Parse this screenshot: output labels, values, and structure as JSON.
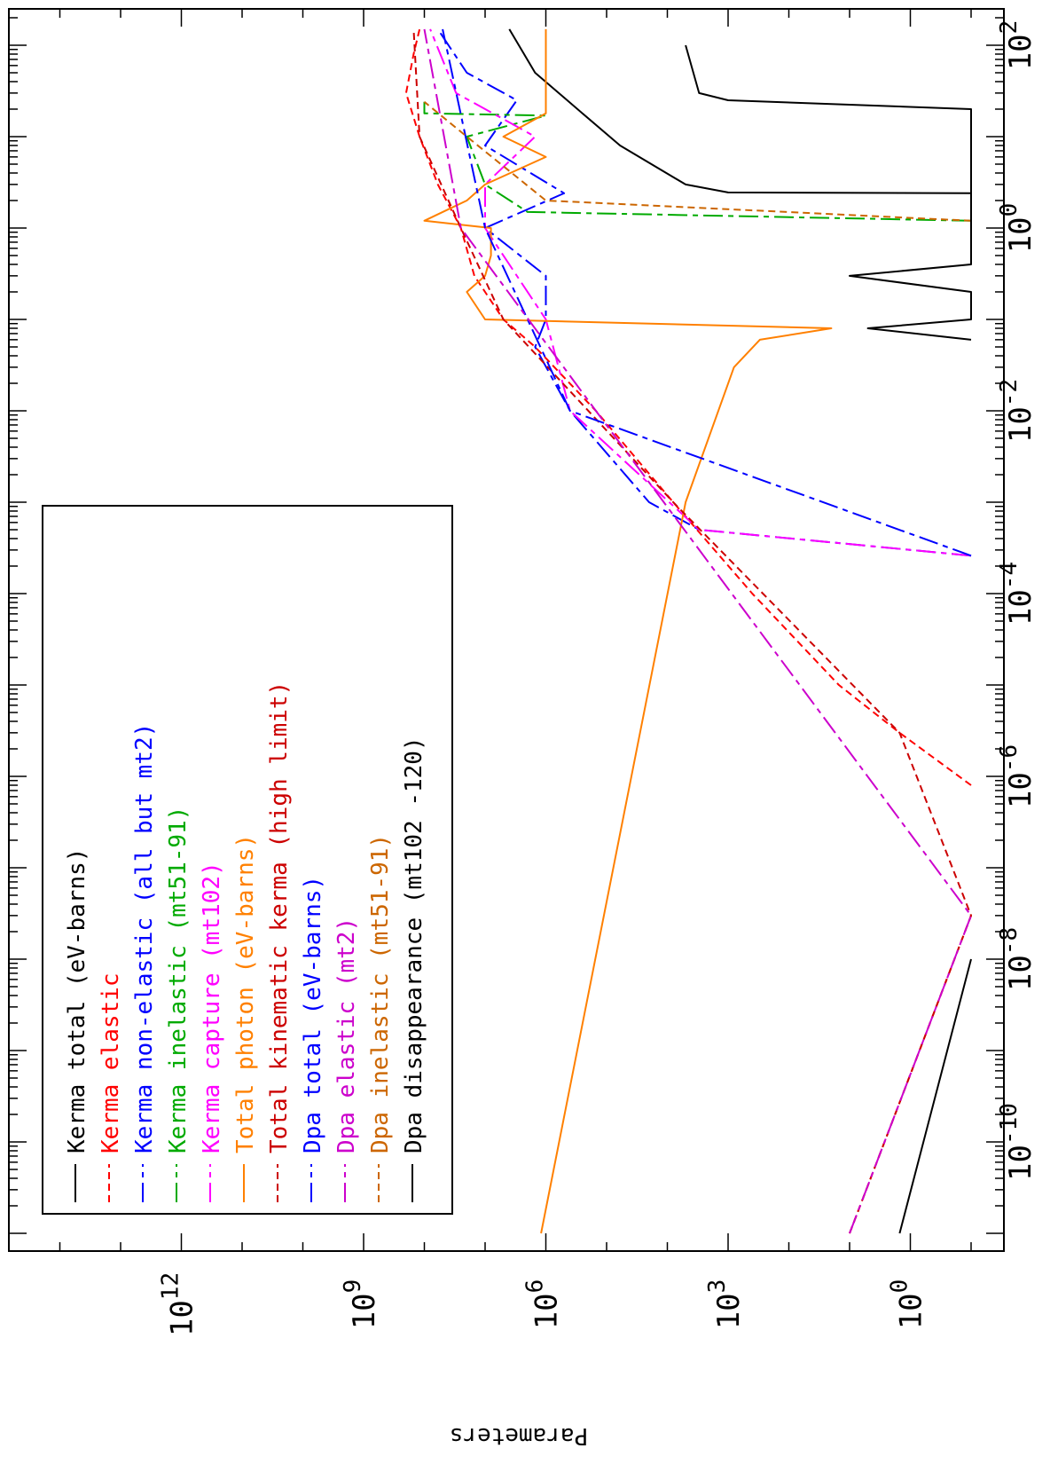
{
  "chart_data": {
    "type": "line",
    "orientation": "rotated 90 degrees clockwise on the page",
    "x_axis": {
      "label": "",
      "scale": "log",
      "range": [
        1e-11,
        200
      ],
      "tick_labels": [
        {
          "base": "10",
          "exp": "-10",
          "value": 1e-10
        },
        {
          "base": "10",
          "exp": "-8",
          "value": 1e-08
        },
        {
          "base": "10",
          "exp": "-6",
          "value": 1e-06
        },
        {
          "base": "10",
          "exp": "-4",
          "value": 0.0001
        },
        {
          "base": "10",
          "exp": "-2",
          "value": 0.01
        },
        {
          "base": "10",
          "exp": "0",
          "value": 1
        },
        {
          "base": "10",
          "exp": "2",
          "value": 100
        }
      ]
    },
    "y_axis": {
      "label": "Parameters",
      "scale": "log",
      "range": [
        0.1,
        100000000000000.0
      ],
      "tick_labels": [
        {
          "base": "10",
          "exp": "0",
          "value": 1
        },
        {
          "base": "10",
          "exp": "3",
          "value": 1000.0
        },
        {
          "base": "10",
          "exp": "6",
          "value": 1000000.0
        },
        {
          "base": "10",
          "exp": "9",
          "value": 1000000000.0
        },
        {
          "base": "10",
          "exp": "12",
          "value": 1000000000000.0
        }
      ]
    },
    "legend_position": "upper-left of the rotated plot",
    "series": [
      {
        "name": "Kerma total  (eV-barns)",
        "color": "#000000",
        "dash": "solid",
        "points": [
          [
            1e-11,
            1.5
          ],
          [
            1e-08,
            0.1
          ]
        ],
        "tail": [
          [
            2.4,
            0.1
          ],
          [
            2.45,
            1000
          ],
          [
            3,
            5000
          ],
          [
            8,
            60000
          ],
          [
            18,
            250000
          ],
          [
            50,
            1500000
          ],
          [
            150,
            4000000
          ]
        ]
      },
      {
        "name": "Kerma elastic",
        "color": "#ff0000",
        "dash": "short",
        "points": [
          [
            1e-11,
            10
          ],
          [
            3e-08,
            0.1
          ]
        ],
        "tail": [
          [
            8e-07,
            0.1
          ],
          [
            3e-06,
            1.5
          ],
          [
            1e-05,
            15
          ],
          [
            0.0001,
            400
          ],
          [
            0.001,
            8000
          ],
          [
            0.01,
            150000.0
          ],
          [
            0.05,
            1500000.0
          ],
          [
            0.1,
            5000000.0
          ],
          [
            0.3,
            15000000.0
          ],
          [
            1,
            25000000.0
          ],
          [
            3,
            60000000.0
          ],
          [
            10,
            120000000.0
          ],
          [
            30,
            200000000.0
          ],
          [
            80,
            150000000.0
          ],
          [
            150,
            120000000.0
          ]
        ]
      },
      {
        "name": "Kerma non-elastic (all but mt2)",
        "color": "#0000ff",
        "dash": "longshort",
        "points": [
          [
            0.00026,
            0.1
          ],
          [
            0.0005,
            3000
          ],
          [
            0.001,
            20000
          ],
          [
            0.01,
            400000.0
          ],
          [
            0.05,
            1500000.0
          ],
          [
            0.1,
            1000000.0
          ],
          [
            0.3,
            1000000.0
          ],
          [
            1,
            10000000.0
          ],
          [
            2.4,
            500000.0
          ],
          [
            8,
            10000000.0
          ],
          [
            25,
            3000000.0
          ],
          [
            50,
            20000000.0
          ],
          [
            150,
            60000000.0
          ]
        ]
      },
      {
        "name": "Kerma inelastic (mt51-91)",
        "color": "#00aa00",
        "dash": "longshort",
        "points": [
          [
            1.2,
            0.1
          ],
          [
            1.5,
            2000000.0
          ],
          [
            3,
            10000000.0
          ],
          [
            10,
            20000000.0
          ],
          [
            17,
            1000000.0
          ],
          [
            18,
            100000000.0
          ],
          [
            24,
            100000000.0
          ]
        ]
      },
      {
        "name": "Kerma capture (mt102)",
        "color": "#ff00ff",
        "dash": "longshort",
        "points": [
          [
            0.00026,
            0.1
          ],
          [
            0.0005,
            3000
          ],
          [
            0.01,
            400000.0
          ],
          [
            0.1,
            1000000.0
          ],
          [
            1,
            10000000.0
          ],
          [
            3,
            10000000.0
          ],
          [
            10,
            1500000.0
          ],
          [
            30,
            30000000.0
          ],
          [
            150,
            80000000.0
          ]
        ]
      },
      {
        "name": "Total photon (eV-barns)",
        "color": "#ff8000",
        "dash": "solid",
        "points": [
          [
            1e-11,
            1200000.0
          ],
          [
            0.001,
            5000
          ],
          [
            0.03,
            800
          ],
          [
            0.06,
            300
          ],
          [
            0.08,
            20
          ],
          [
            0.1,
            10000000.0
          ],
          [
            0.2,
            20000000.0
          ],
          [
            0.3,
            10000000.0
          ],
          [
            0.5,
            8000000.0
          ],
          [
            1,
            8000000.0
          ],
          [
            1.2,
            100000000.0
          ],
          [
            2,
            20000000.0
          ],
          [
            3,
            10000000.0
          ],
          [
            6,
            1000000.0
          ],
          [
            10,
            5000000.0
          ],
          [
            18,
            1000000.0
          ],
          [
            150,
            1000000.0
          ]
        ]
      },
      {
        "name": "Total kinematic kerma (high limit)",
        "color": "#cc0000",
        "dash": "short",
        "points": [
          [
            1e-11,
            10
          ],
          [
            3e-08,
            0.1
          ],
          [
            3e-06,
            1.5
          ],
          [
            0.001,
            8000
          ],
          [
            0.1,
            5000000.0
          ],
          [
            1,
            25000000.0
          ],
          [
            10,
            120000000.0
          ],
          [
            150,
            150000000.0
          ]
        ]
      },
      {
        "name": "Dpa total (eV-barns)",
        "color": "#0000ff",
        "dash": "longshort",
        "points": [
          [
            0.00026,
            0.1
          ],
          [
            0.01,
            400000.0
          ],
          [
            1,
            10000000.0
          ],
          [
            150,
            50000000.0
          ]
        ]
      },
      {
        "name": "Dpa elastic (mt2)",
        "color": "#cc00cc",
        "dash": "longshort",
        "points": [
          [
            1e-11,
            10
          ],
          [
            3e-08,
            0.1
          ],
          [
            0.01,
            150000.0
          ],
          [
            1,
            25000000.0
          ],
          [
            150,
            100000000.0
          ]
        ]
      },
      {
        "name": "Dpa inelastic (mt51-91)",
        "color": "#cc6600",
        "dash": "short",
        "points": [
          [
            1.2,
            0.1
          ],
          [
            2,
            1000000.0
          ],
          [
            10,
            20000000.0
          ],
          [
            24,
            100000000.0
          ]
        ]
      },
      {
        "name": "Dpa disappearance (mt102 -120)",
        "color": "#000000",
        "dash": "solid",
        "points": [
          [
            0.06,
            0.1
          ],
          [
            0.08,
            5
          ],
          [
            0.1,
            0.1
          ],
          [
            0.2,
            0.1
          ],
          [
            0.3,
            10
          ],
          [
            0.4,
            0.1
          ],
          [
            20,
            0.1
          ],
          [
            25,
            1000
          ],
          [
            30,
            3000
          ],
          [
            100,
            5000
          ]
        ]
      }
    ]
  }
}
